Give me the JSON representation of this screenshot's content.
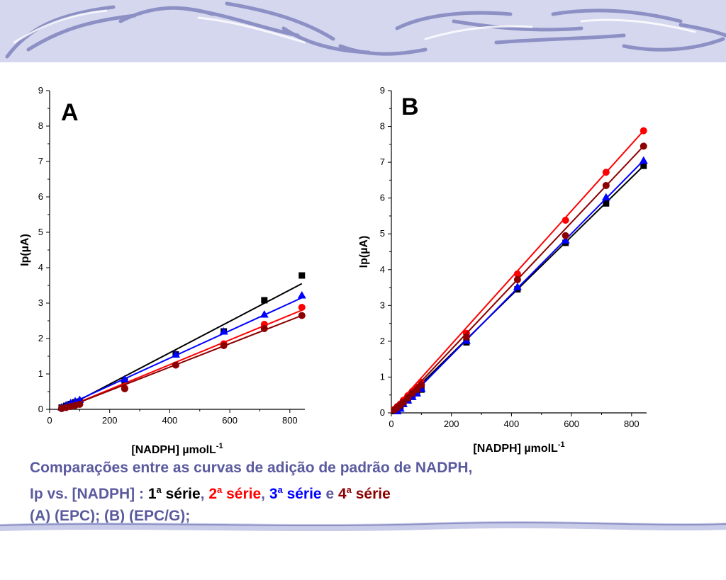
{
  "chart_data": [
    {
      "type": "scatter",
      "panel_label": "A",
      "xlabel": "[NADPH] µmolL-1",
      "xlabel_main": "[NADPH] µmolL",
      "xlabel_sup": "-1",
      "ylabel": "Ip(µA)",
      "xlim": [
        0,
        850
      ],
      "ylim": [
        0,
        9
      ],
      "xticks": [
        0,
        200,
        400,
        600,
        800
      ],
      "yticks": [
        0,
        1,
        2,
        3,
        4,
        5,
        6,
        7,
        8,
        9
      ],
      "series": [
        {
          "color": "#000000",
          "marker": "square",
          "x": [
            40,
            55,
            70,
            85,
            100,
            250,
            420,
            580,
            715,
            840
          ],
          "y": [
            0.05,
            0.1,
            0.15,
            0.2,
            0.22,
            0.8,
            1.55,
            2.2,
            3.08,
            3.78
          ],
          "fit": [
            [
              40,
              0.0
            ],
            [
              840,
              3.55
            ]
          ]
        },
        {
          "color": "#ff0000",
          "marker": "circle",
          "x": [
            40,
            55,
            70,
            85,
            100,
            250,
            420,
            580,
            715,
            840
          ],
          "y": [
            0.03,
            0.06,
            0.09,
            0.12,
            0.15,
            0.6,
            1.25,
            1.85,
            2.4,
            2.88
          ],
          "fit": [
            [
              40,
              0.0
            ],
            [
              840,
              2.8
            ]
          ]
        },
        {
          "color": "#0000ff",
          "marker": "triangle",
          "x": [
            40,
            55,
            70,
            85,
            100,
            250,
            420,
            580,
            715,
            840
          ],
          "y": [
            0.06,
            0.12,
            0.18,
            0.23,
            0.27,
            0.85,
            1.55,
            2.2,
            2.68,
            3.22
          ],
          "fit": [
            [
              40,
              0.05
            ],
            [
              840,
              3.15
            ]
          ]
        },
        {
          "color": "#8b0000",
          "marker": "circle",
          "x": [
            40,
            55,
            70,
            85,
            100,
            250,
            420,
            580,
            715,
            840
          ],
          "y": [
            0.02,
            0.05,
            0.08,
            0.11,
            0.14,
            0.58,
            1.25,
            1.8,
            2.28,
            2.65
          ],
          "fit": [
            [
              40,
              0.0
            ],
            [
              840,
              2.65
            ]
          ]
        }
      ]
    },
    {
      "type": "scatter",
      "panel_label": "B",
      "xlabel": "[NADPH] µmolL-1",
      "xlabel_main": "[NADPH] µmolL",
      "xlabel_sup": "-1",
      "ylabel": "Ip(µA)",
      "xlim": [
        0,
        850
      ],
      "ylim": [
        0,
        9
      ],
      "xticks": [
        0,
        200,
        400,
        600,
        800
      ],
      "yticks": [
        0,
        1,
        2,
        3,
        4,
        5,
        6,
        7,
        8,
        9
      ],
      "series": [
        {
          "color": "#000000",
          "marker": "square",
          "x": [
            10,
            20,
            30,
            40,
            55,
            70,
            85,
            100,
            250,
            420,
            580,
            715,
            840
          ],
          "y": [
            0.05,
            0.1,
            0.15,
            0.25,
            0.35,
            0.45,
            0.55,
            0.65,
            1.97,
            3.45,
            4.75,
            5.85,
            6.9
          ],
          "fit": [
            [
              0,
              0.0
            ],
            [
              840,
              6.9
            ]
          ]
        },
        {
          "color": "#ff0000",
          "marker": "circle",
          "x": [
            10,
            20,
            30,
            40,
            55,
            70,
            85,
            100,
            250,
            420,
            580,
            715,
            840
          ],
          "y": [
            0.1,
            0.18,
            0.25,
            0.35,
            0.48,
            0.6,
            0.72,
            0.85,
            2.22,
            3.88,
            5.38,
            6.72,
            7.88
          ],
          "fit": [
            [
              0,
              0.05
            ],
            [
              840,
              7.88
            ]
          ]
        },
        {
          "color": "#0000ff",
          "marker": "triangle",
          "x": [
            20,
            30,
            40,
            55,
            70,
            85,
            100,
            250,
            420,
            580,
            715,
            840
          ],
          "y": [
            0.05,
            0.12,
            0.25,
            0.35,
            0.45,
            0.55,
            0.68,
            2.02,
            3.52,
            4.82,
            6.02,
            7.05
          ],
          "fit": [
            [
              10,
              0.0
            ],
            [
              840,
              7.05
            ]
          ]
        },
        {
          "color": "#8b0000",
          "marker": "circle",
          "x": [
            10,
            20,
            30,
            40,
            55,
            70,
            85,
            100,
            250,
            420,
            580,
            715,
            840
          ],
          "y": [
            0.08,
            0.15,
            0.22,
            0.3,
            0.42,
            0.55,
            0.65,
            0.78,
            2.12,
            3.72,
            4.95,
            6.35,
            7.45
          ],
          "fit": [
            [
              0,
              0.0
            ],
            [
              840,
              7.45
            ]
          ]
        }
      ]
    }
  ],
  "caption": {
    "line1": "Comparações entre as curvas de adição de padrão de NADPH,",
    "line2_prefix": "Ip vs. [NADPH] : ",
    "s1_num": "1",
    "s1_sup": "a",
    "s1_word": " série",
    "s2_num": "2",
    "s2_sup": "a",
    "s2_word": " série",
    "s3_num": "3",
    "s3_sup": "a",
    "s3_word": " série",
    "connector": " e ",
    "s4_num": "4",
    "s4_sup": "a",
    "s4_word": " série",
    "comma": ", ",
    "line3": "(A)  (EPC); (B)  (EPC/G);"
  },
  "theme": {
    "band_color": "#c8cce8",
    "band_stroke": "#8c90c4",
    "caption_color": "#5a5a9e"
  }
}
